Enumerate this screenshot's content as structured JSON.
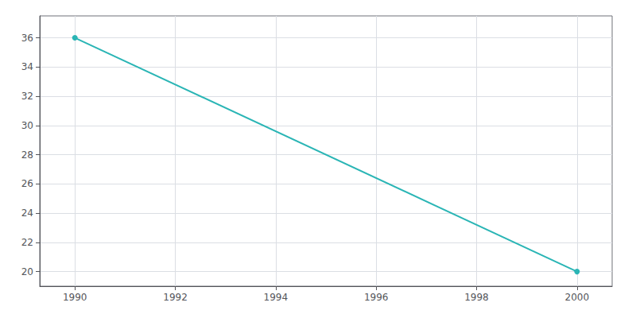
{
  "chart_data": {
    "type": "line",
    "x": [
      1990,
      2000
    ],
    "values": [
      36,
      20
    ],
    "color": "#2ab5b5",
    "marker": "circle",
    "xlim": [
      1989.3,
      2000.7
    ],
    "xticks": [
      1990,
      1992,
      1994,
      1996,
      1998,
      2000
    ],
    "ylim": [
      19.0,
      37.5
    ],
    "yticks": [
      20,
      22,
      24,
      26,
      28,
      30,
      32,
      34,
      36
    ],
    "grid": true
  }
}
